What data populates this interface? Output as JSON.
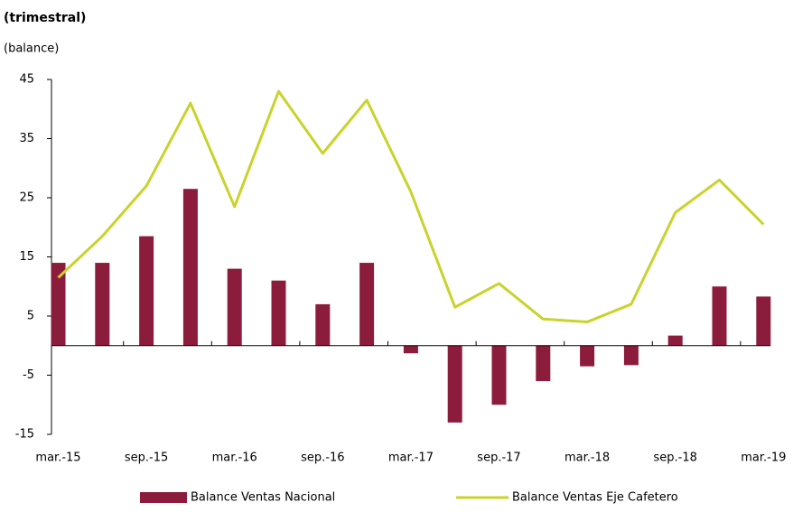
{
  "chart_data": {
    "type": "bar-line",
    "subtitle": "(trimestral)",
    "y_label": "(balance)",
    "categories": [
      "mar.-15",
      null,
      "sep.-15",
      null,
      "mar.-16",
      null,
      "sep.-16",
      null,
      "mar.-17",
      null,
      "sep.-17",
      null,
      "mar.-18",
      null,
      "sep.-18",
      null,
      "mar.-19"
    ],
    "series": [
      {
        "name": "Balance Ventas Nacional",
        "color": "#8c1c3c",
        "kind": "bar",
        "values": [
          14,
          14,
          18.5,
          26.5,
          13,
          11,
          7,
          14,
          -1.3,
          -13,
          -10,
          -6,
          -3.5,
          -3.3,
          1.7,
          10,
          8.3
        ]
      },
      {
        "name": "Balance Ventas Eje Cafetero",
        "color": "#c8d32c",
        "kind": "line",
        "values": [
          11.5,
          18.5,
          27,
          41,
          23.5,
          43,
          32.5,
          41.5,
          26,
          6.5,
          10.5,
          4.5,
          4,
          7,
          22.5,
          28,
          20.5
        ]
      }
    ],
    "ylim": [
      -15,
      45
    ],
    "yticks": [
      -15,
      -5,
      5,
      15,
      25,
      35,
      45
    ]
  }
}
